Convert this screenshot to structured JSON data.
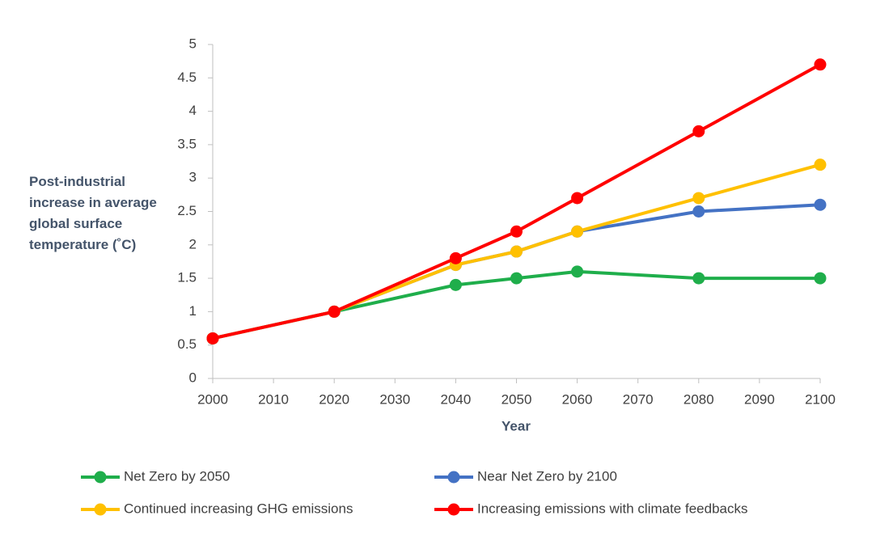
{
  "chart_data": {
    "type": "line",
    "y_label": "Post-industrial increase in average global surface temperature (˚C)",
    "x_label": "Year",
    "x": [
      2000,
      2020,
      2040,
      2050,
      2060,
      2080,
      2100
    ],
    "series": [
      {
        "name": "Net Zero by 2050",
        "color": "#1fae4b",
        "values": [
          0.6,
          1.0,
          1.4,
          1.5,
          1.6,
          1.5,
          1.5
        ]
      },
      {
        "name": "Near Net Zero by 2100",
        "color": "#4472c4",
        "values": [
          0.6,
          1.0,
          1.7,
          1.9,
          2.2,
          2.5,
          2.6
        ]
      },
      {
        "name": "Continued increasing GHG emissions",
        "color": "#ffc000",
        "values": [
          0.6,
          1.0,
          1.7,
          1.9,
          2.2,
          2.7,
          3.2
        ]
      },
      {
        "name": "Increasing emissions with climate feedbacks",
        "color": "#ff0000",
        "values": [
          0.6,
          1.0,
          1.8,
          2.2,
          2.7,
          3.7,
          4.7
        ]
      }
    ],
    "xlim": [
      2000,
      2100
    ],
    "xticks": [
      2000,
      2010,
      2020,
      2030,
      2040,
      2050,
      2060,
      2070,
      2080,
      2090,
      2100
    ],
    "ylim": [
      0,
      5
    ],
    "yticks": [
      0,
      0.5,
      1,
      1.5,
      2,
      2.5,
      3,
      3.5,
      4,
      4.5,
      5
    ],
    "grid": false,
    "legend": "bottom"
  }
}
